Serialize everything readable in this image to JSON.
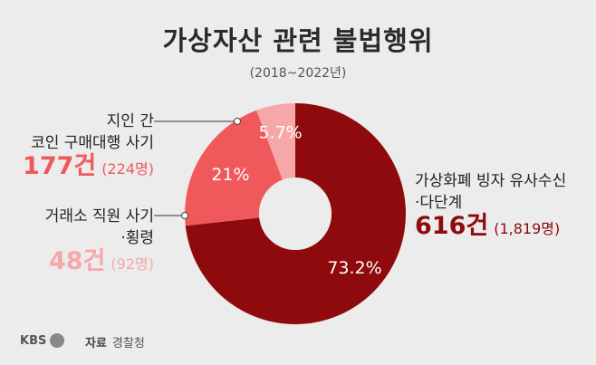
{
  "title": "가상자산 관련 불법행위",
  "subtitle": "(2018~2022년)",
  "chart_data": {
    "type": "pie",
    "donut": true,
    "slices": [
      {
        "label": "가상화폐 빙자 유사수신 ·다단계",
        "value": 73.2,
        "pct_label": "73.2%",
        "cases": "616건",
        "people": "(1,819명)",
        "color": "#8e0a0c"
      },
      {
        "label": "지인 간 코인 구매대행 사기",
        "value": 21,
        "pct_label": "21%",
        "cases": "177건",
        "people": "(224명)",
        "color": "#f0595b"
      },
      {
        "label": "거래소 직원 사기 ·횡령",
        "value": 5.7,
        "pct_label": "5.7%",
        "cases": "48건",
        "people": "(92명)",
        "color": "#f6a7a8"
      }
    ]
  },
  "labels": {
    "right": {
      "line1": "가상화폐 빙자 유사수신",
      "line2": "·다단계",
      "cases": "616건",
      "people": "(1,819명)"
    },
    "top_left": {
      "line1": "지인 간",
      "line2": "코인 구매대행 사기",
      "cases": "177건",
      "people": "(224명)"
    },
    "bottom_left": {
      "line1": "거래소 직원 사기",
      "line2": "·횡령",
      "cases": "48건",
      "people": "(92명)"
    }
  },
  "footer": {
    "logo": "KBS",
    "source_label": "자료",
    "source": "경찰청"
  }
}
